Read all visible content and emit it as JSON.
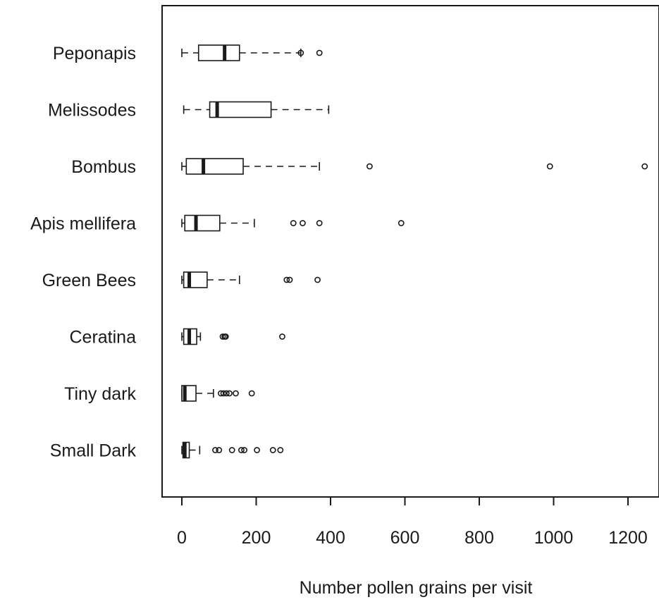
{
  "chart_data": {
    "type": "boxplot",
    "orientation": "horizontal",
    "title": "",
    "xlabel": "Number pollen grains per visit",
    "ylabel": "",
    "xlim": [
      -50,
      1260
    ],
    "xticks": [
      0,
      200,
      400,
      600,
      800,
      1000,
      1200
    ],
    "xtick_labels": [
      "0",
      "200",
      "400",
      "600",
      "800",
      "1000",
      "1200"
    ],
    "grid": false,
    "categories": [
      "Peponapis",
      "Melissodes",
      "Bombus",
      "Apis mellifera",
      "Green Bees",
      "Ceratina",
      "Tiny dark",
      "Small Dark"
    ],
    "boxes": [
      {
        "label": "Peponapis",
        "whisker_low": 0,
        "q1": 45,
        "median": 115,
        "q3": 155,
        "whisker_high": 320,
        "outliers": [
          320,
          370
        ]
      },
      {
        "label": "Melissodes",
        "whisker_low": 5,
        "q1": 75,
        "median": 95,
        "q3": 240,
        "whisker_high": 395,
        "outliers": []
      },
      {
        "label": "Bombus",
        "whisker_low": 0,
        "q1": 12,
        "median": 58,
        "q3": 165,
        "whisker_high": 370,
        "outliers": [
          505,
          990,
          1245
        ]
      },
      {
        "label": "Apis mellifera",
        "whisker_low": 0,
        "q1": 8,
        "median": 38,
        "q3": 102,
        "whisker_high": 195,
        "outliers": [
          300,
          325,
          370,
          590
        ]
      },
      {
        "label": "Green Bees",
        "whisker_low": 0,
        "q1": 5,
        "median": 20,
        "q3": 68,
        "whisker_high": 155,
        "outliers": [
          282,
          290,
          365
        ]
      },
      {
        "label": "Ceratina",
        "whisker_low": 0,
        "q1": 5,
        "median": 20,
        "q3": 40,
        "whisker_high": 50,
        "outliers": [
          110,
          115,
          118,
          270
        ]
      },
      {
        "label": "Tiny dark",
        "whisker_low": 0,
        "q1": 0,
        "median": 8,
        "q3": 38,
        "whisker_high": 85,
        "outliers": [
          105,
          112,
          120,
          128,
          145,
          188
        ]
      },
      {
        "label": "Small Dark",
        "whisker_low": 0,
        "q1": 3,
        "median": 8,
        "q3": 20,
        "whisker_high": 48,
        "outliers": [
          90,
          100,
          135,
          160,
          168,
          202,
          245,
          265
        ]
      }
    ],
    "colors": {
      "stroke": "#1a1a1a",
      "background": "#ffffff"
    }
  }
}
